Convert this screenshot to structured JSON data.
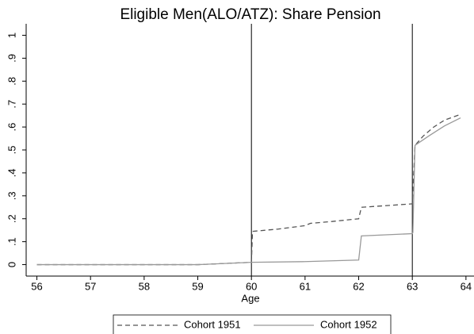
{
  "chart_data": {
    "type": "line",
    "title": "Eligible Men(ALO/ATZ): Share Pension",
    "xlabel": "Age",
    "xlim": [
      55.8,
      64.15
    ],
    "ylim": [
      -0.05,
      1.05
    ],
    "xticks": [
      56,
      57,
      58,
      59,
      60,
      61,
      62,
      63,
      64
    ],
    "yticks": [
      0,
      {
        "value": 0.1,
        "label": ".1"
      },
      {
        "value": 0.2,
        "label": ".2"
      },
      {
        "value": 0.3,
        "label": ".3"
      },
      {
        "value": 0.4,
        "label": ".4"
      },
      {
        "value": 0.5,
        "label": ".5"
      },
      {
        "value": 0.6,
        "label": ".6"
      },
      {
        "value": 0.7,
        "label": ".7"
      },
      {
        "value": 0.8,
        "label": ".8"
      },
      {
        "value": 0.9,
        "label": ".9"
      },
      1
    ],
    "vlines": [
      60,
      63
    ],
    "series": [
      {
        "name": "Cohort 1951",
        "color": "#555555",
        "style": "dashed",
        "x": [
          56,
          59,
          59.5,
          60,
          60.02,
          60.5,
          61,
          61.1,
          61.5,
          62,
          62.05,
          62.5,
          63,
          63.05,
          63.2,
          63.4,
          63.6,
          63.9
        ],
        "values": [
          0,
          0,
          0.005,
          0.01,
          0.145,
          0.155,
          0.17,
          0.18,
          0.188,
          0.2,
          0.25,
          0.257,
          0.265,
          0.52,
          0.56,
          0.6,
          0.63,
          0.655
        ]
      },
      {
        "name": "Cohort 1952",
        "color": "#999999",
        "style": "solid",
        "x": [
          56,
          59,
          59.5,
          60,
          61,
          62,
          62.05,
          62.5,
          63,
          63.01,
          63.05,
          63.3,
          63.6,
          63.9
        ],
        "values": [
          0,
          0,
          0.005,
          0.01,
          0.013,
          0.02,
          0.125,
          0.13,
          0.135,
          0.14,
          0.52,
          0.56,
          0.605,
          0.64
        ]
      }
    ]
  }
}
